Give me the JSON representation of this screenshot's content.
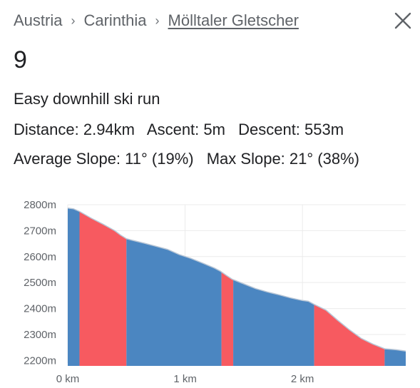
{
  "breadcrumb": {
    "items": [
      "Austria",
      "Carinthia",
      "Mölltaler Gletscher"
    ],
    "separator": "›"
  },
  "close_icon": "close-icon",
  "run": {
    "name": "9",
    "type": "Easy downhill ski run",
    "distance_label": "Distance:",
    "distance": "2.94km",
    "ascent_label": "Ascent:",
    "ascent": "5m",
    "descent_label": "Descent:",
    "descent": "553m",
    "avg_slope_label": "Average Slope:",
    "avg_slope": "11° (19%)",
    "max_slope_label": "Max Slope:",
    "max_slope": "21° (38%)"
  },
  "colors": {
    "blue": "#4b86c1",
    "red": "#f75a60",
    "outline": "#b8c6d6",
    "grid": "#ebebeb"
  },
  "chart_data": {
    "type": "area",
    "xlabel": "",
    "ylabel": "",
    "xlim": [
      0,
      2.88
    ],
    "ylim": [
      2190,
      2800
    ],
    "x_ticks": [
      {
        "value": 0,
        "label": "0 km"
      },
      {
        "value": 1,
        "label": "1 km"
      },
      {
        "value": 2,
        "label": "2 km"
      }
    ],
    "y_ticks": [
      {
        "value": 2200,
        "label": "2200m"
      },
      {
        "value": 2300,
        "label": "2300m"
      },
      {
        "value": 2400,
        "label": "2400m"
      },
      {
        "value": 2500,
        "label": "2500m"
      },
      {
        "value": 2600,
        "label": "2600m"
      },
      {
        "value": 2700,
        "label": "2700m"
      },
      {
        "value": 2800,
        "label": "2800m"
      }
    ],
    "profile": [
      [
        0,
        2787
      ],
      [
        0.05,
        2784
      ],
      [
        0.1,
        2774
      ],
      [
        0.2,
        2748
      ],
      [
        0.3,
        2725
      ],
      [
        0.4,
        2700
      ],
      [
        0.45,
        2683
      ],
      [
        0.5,
        2669
      ],
      [
        0.55,
        2663
      ],
      [
        0.65,
        2652
      ],
      [
        0.75,
        2640
      ],
      [
        0.85,
        2628
      ],
      [
        0.95,
        2608
      ],
      [
        1.05,
        2593
      ],
      [
        1.15,
        2575
      ],
      [
        1.25,
        2556
      ],
      [
        1.3,
        2544
      ],
      [
        1.35,
        2528
      ],
      [
        1.4,
        2513
      ],
      [
        1.5,
        2495
      ],
      [
        1.6,
        2477
      ],
      [
        1.7,
        2464
      ],
      [
        1.8,
        2453
      ],
      [
        1.9,
        2441
      ],
      [
        2.0,
        2431
      ],
      [
        2.05,
        2428
      ],
      [
        2.1,
        2416
      ],
      [
        2.2,
        2394
      ],
      [
        2.3,
        2355
      ],
      [
        2.4,
        2318
      ],
      [
        2.5,
        2285
      ],
      [
        2.6,
        2263
      ],
      [
        2.7,
        2245
      ],
      [
        2.8,
        2241
      ],
      [
        2.88,
        2236
      ]
    ],
    "segments": [
      {
        "from": 0,
        "to": 0.1,
        "color": "blue"
      },
      {
        "from": 0.1,
        "to": 0.5,
        "color": "red"
      },
      {
        "from": 0.5,
        "to": 1.31,
        "color": "blue"
      },
      {
        "from": 1.31,
        "to": 1.41,
        "color": "red"
      },
      {
        "from": 1.41,
        "to": 2.1,
        "color": "blue"
      },
      {
        "from": 2.1,
        "to": 2.7,
        "color": "red"
      },
      {
        "from": 2.7,
        "to": 2.88,
        "color": "blue"
      }
    ]
  }
}
